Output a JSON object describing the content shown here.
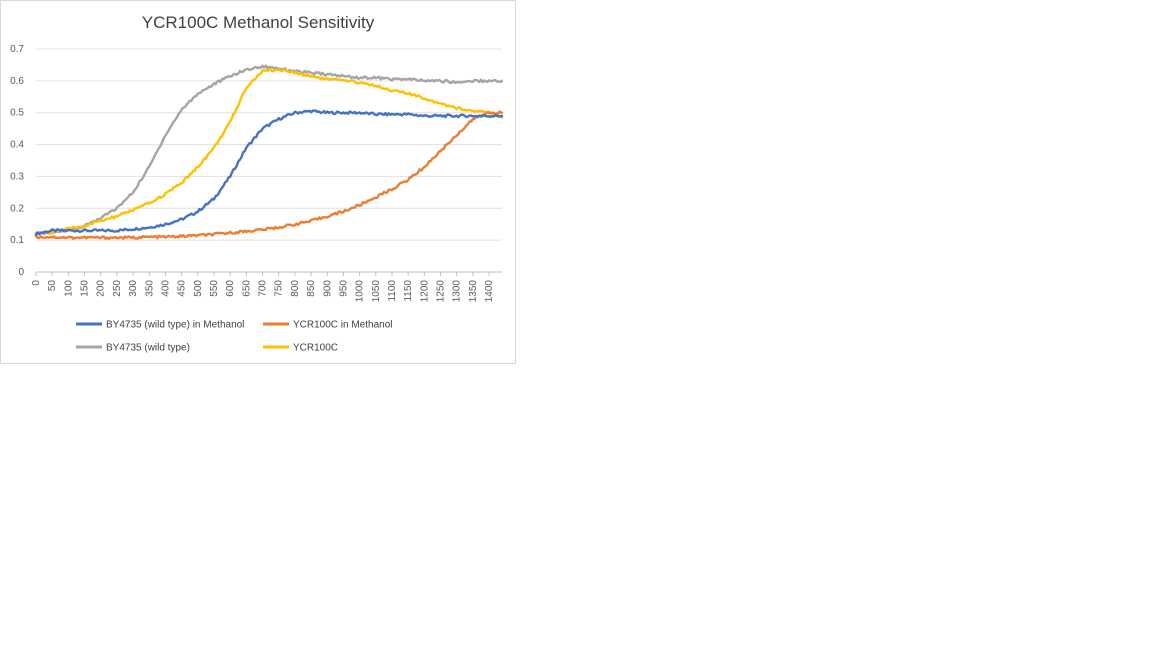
{
  "chart_data": {
    "type": "line",
    "title": "YCR100C  Methanol Sensitivity",
    "xlabel": "",
    "ylabel": "",
    "xlim": [
      0,
      1440
    ],
    "ylim": [
      0,
      0.7
    ],
    "y_ticks": [
      "0",
      "0.1",
      "0.2",
      "0.3",
      "0.4",
      "0.5",
      "0.6",
      "0.7"
    ],
    "x_ticks": [
      "0",
      "50",
      "100",
      "150",
      "200",
      "250",
      "300",
      "350",
      "400",
      "450",
      "500",
      "550",
      "600",
      "650",
      "700",
      "750",
      "800",
      "850",
      "900",
      "950",
      "1000",
      "1050",
      "1100",
      "1150",
      "1200",
      "1250",
      "1300",
      "1350",
      "1400"
    ],
    "grid": true,
    "legend_position": "bottom",
    "series": [
      {
        "name": "BY4735 (wild type) in Methanol",
        "color": "#4472C4",
        "x": [
          0,
          50,
          100,
          150,
          200,
          250,
          300,
          350,
          400,
          450,
          500,
          550,
          600,
          650,
          700,
          750,
          800,
          850,
          900,
          950,
          1000,
          1050,
          1100,
          1150,
          1200,
          1250,
          1300,
          1350,
          1400,
          1440
        ],
        "y": [
          0.12,
          0.13,
          0.13,
          0.13,
          0.13,
          0.13,
          0.135,
          0.14,
          0.15,
          0.165,
          0.19,
          0.23,
          0.3,
          0.39,
          0.45,
          0.48,
          0.5,
          0.505,
          0.5,
          0.5,
          0.5,
          0.495,
          0.495,
          0.495,
          0.49,
          0.49,
          0.49,
          0.49,
          0.49,
          0.49
        ]
      },
      {
        "name": "YCR100C in Methanol",
        "color": "#ED7D31",
        "x": [
          0,
          50,
          100,
          150,
          200,
          250,
          300,
          350,
          400,
          450,
          500,
          550,
          600,
          650,
          700,
          750,
          800,
          850,
          900,
          950,
          1000,
          1050,
          1100,
          1150,
          1200,
          1250,
          1300,
          1350,
          1400,
          1440
        ],
        "y": [
          0.11,
          0.11,
          0.108,
          0.108,
          0.108,
          0.108,
          0.108,
          0.11,
          0.11,
          0.112,
          0.115,
          0.118,
          0.123,
          0.128,
          0.133,
          0.14,
          0.15,
          0.16,
          0.175,
          0.19,
          0.21,
          0.235,
          0.26,
          0.29,
          0.33,
          0.38,
          0.43,
          0.48,
          0.5,
          0.5
        ]
      },
      {
        "name": "BY4735 (wild type)",
        "color": "#A5A5A5",
        "x": [
          0,
          50,
          100,
          150,
          200,
          250,
          300,
          350,
          400,
          450,
          500,
          550,
          600,
          650,
          700,
          750,
          800,
          850,
          900,
          950,
          1000,
          1050,
          1100,
          1150,
          1200,
          1250,
          1300,
          1350,
          1400,
          1440
        ],
        "y": [
          0.12,
          0.125,
          0.13,
          0.145,
          0.17,
          0.2,
          0.25,
          0.33,
          0.43,
          0.51,
          0.56,
          0.59,
          0.615,
          0.635,
          0.645,
          0.64,
          0.63,
          0.625,
          0.62,
          0.615,
          0.61,
          0.61,
          0.605,
          0.605,
          0.6,
          0.6,
          0.595,
          0.6,
          0.6,
          0.6
        ]
      },
      {
        "name": "YCR100C",
        "color": "#FFC000",
        "x": [
          0,
          50,
          100,
          150,
          200,
          250,
          300,
          350,
          400,
          450,
          500,
          550,
          600,
          650,
          700,
          750,
          800,
          850,
          900,
          950,
          1000,
          1050,
          1100,
          1150,
          1200,
          1250,
          1300,
          1350,
          1400,
          1440
        ],
        "y": [
          0.12,
          0.125,
          0.135,
          0.145,
          0.16,
          0.175,
          0.195,
          0.215,
          0.245,
          0.28,
          0.33,
          0.39,
          0.47,
          0.58,
          0.63,
          0.635,
          0.625,
          0.615,
          0.605,
          0.6,
          0.595,
          0.585,
          0.57,
          0.56,
          0.545,
          0.53,
          0.515,
          0.505,
          0.5,
          0.485
        ]
      }
    ]
  }
}
